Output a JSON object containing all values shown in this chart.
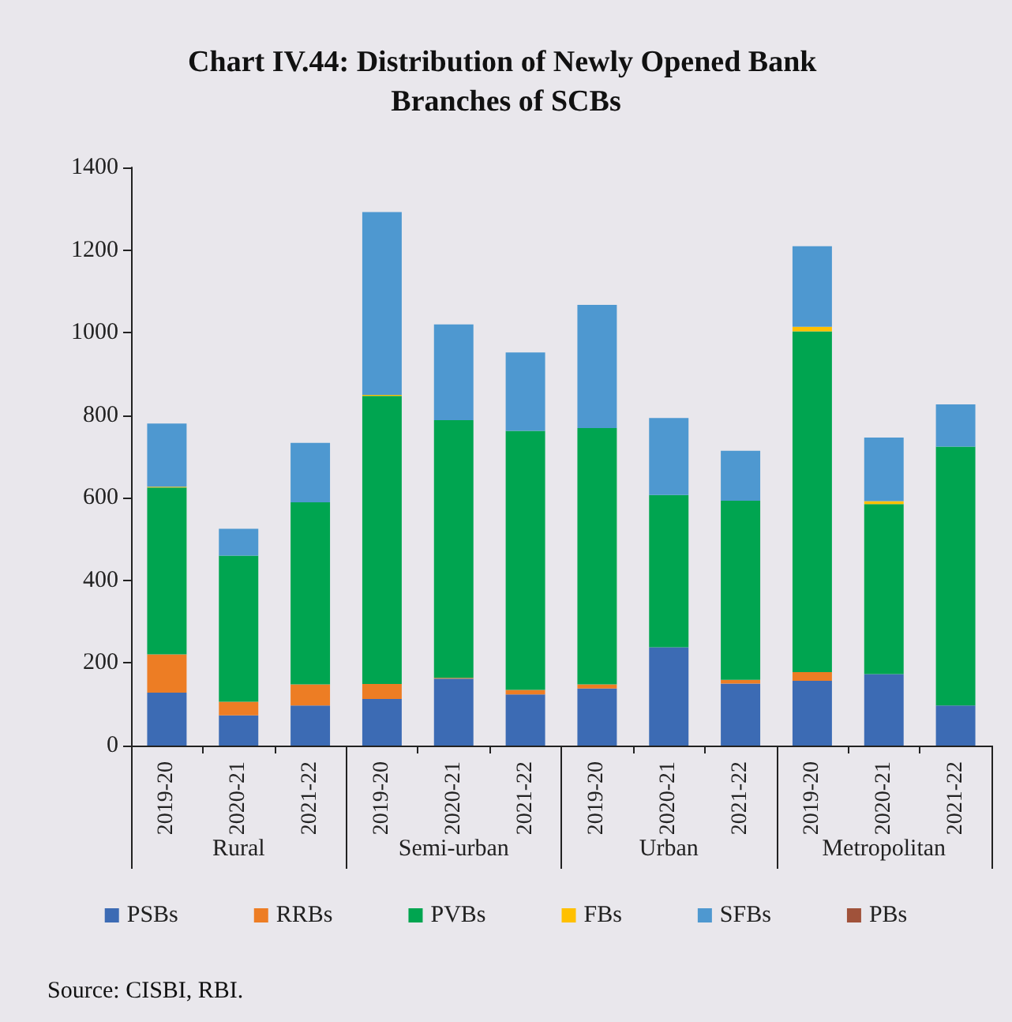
{
  "chart_data": {
    "type": "bar",
    "stacked": true,
    "title": "Chart IV.44: Distribution of Newly Opened Bank Branches of SCBs",
    "categories": [
      "2019-20",
      "2020-21",
      "2021-22",
      "2019-20",
      "2020-21",
      "2021-22",
      "2019-20",
      "2020-21",
      "2021-22",
      "2019-20",
      "2020-21",
      "2021-22"
    ],
    "series": [
      {
        "name": "PSBs",
        "color": "#3c6bb4",
        "values": [
          128,
          73,
          97,
          113,
          162,
          124,
          138,
          238,
          150,
          157,
          173,
          97
        ]
      },
      {
        "name": "RRBs",
        "color": "#ed7d24",
        "values": [
          93,
          33,
          51,
          36,
          2,
          11,
          10,
          0,
          9,
          21,
          0,
          0
        ]
      },
      {
        "name": "PVBs",
        "color": "#00a550",
        "values": [
          404,
          354,
          441,
          698,
          624,
          627,
          621,
          369,
          434,
          825,
          412,
          627
        ]
      },
      {
        "name": "FBs",
        "color": "#ffc000",
        "values": [
          2,
          0,
          0,
          2,
          0,
          0,
          0,
          0,
          0,
          11,
          7,
          0
        ]
      },
      {
        "name": "SFBs",
        "color": "#4e98d0",
        "values": [
          153,
          65,
          144,
          443,
          232,
          190,
          298,
          186,
          121,
          195,
          154,
          102
        ]
      },
      {
        "name": "PBs",
        "color": "#a0523a",
        "values": [
          0,
          0,
          0,
          0,
          0,
          0,
          0,
          0,
          0,
          0,
          0,
          0
        ]
      }
    ],
    "ylim": [
      0,
      1400
    ],
    "yticks": [
      0,
      200,
      400,
      600,
      800,
      1000,
      1200,
      1400
    ],
    "grid": false,
    "legend": "bottom",
    "annotations": [
      "Rural",
      "Semi-urban",
      "Urban",
      "Metropolitan",
      "Source: CISBI, RBI."
    ]
  }
}
